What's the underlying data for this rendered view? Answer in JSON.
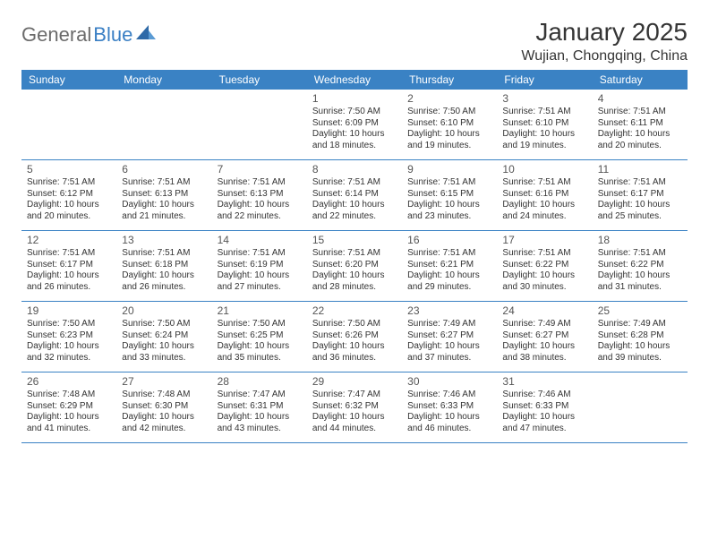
{
  "logo": {
    "general": "General",
    "blue": "Blue"
  },
  "title": "January 2025",
  "location": "Wujian, Chongqing, China",
  "day_headers": [
    "Sunday",
    "Monday",
    "Tuesday",
    "Wednesday",
    "Thursday",
    "Friday",
    "Saturday"
  ],
  "colors": {
    "header_bg": "#3a82c4",
    "header_fg": "#ffffff",
    "row_border": "#3a82c4",
    "title_fg": "#353535",
    "logo_gray": "#6b6b6b",
    "logo_blue": "#3a7fc4",
    "text": "#333333"
  },
  "weeks": [
    [
      {
        "n": "",
        "sr": "",
        "ss": "",
        "dl": ""
      },
      {
        "n": "",
        "sr": "",
        "ss": "",
        "dl": ""
      },
      {
        "n": "",
        "sr": "",
        "ss": "",
        "dl": ""
      },
      {
        "n": "1",
        "sr": "Sunrise: 7:50 AM",
        "ss": "Sunset: 6:09 PM",
        "dl": "Daylight: 10 hours and 18 minutes."
      },
      {
        "n": "2",
        "sr": "Sunrise: 7:50 AM",
        "ss": "Sunset: 6:10 PM",
        "dl": "Daylight: 10 hours and 19 minutes."
      },
      {
        "n": "3",
        "sr": "Sunrise: 7:51 AM",
        "ss": "Sunset: 6:10 PM",
        "dl": "Daylight: 10 hours and 19 minutes."
      },
      {
        "n": "4",
        "sr": "Sunrise: 7:51 AM",
        "ss": "Sunset: 6:11 PM",
        "dl": "Daylight: 10 hours and 20 minutes."
      }
    ],
    [
      {
        "n": "5",
        "sr": "Sunrise: 7:51 AM",
        "ss": "Sunset: 6:12 PM",
        "dl": "Daylight: 10 hours and 20 minutes."
      },
      {
        "n": "6",
        "sr": "Sunrise: 7:51 AM",
        "ss": "Sunset: 6:13 PM",
        "dl": "Daylight: 10 hours and 21 minutes."
      },
      {
        "n": "7",
        "sr": "Sunrise: 7:51 AM",
        "ss": "Sunset: 6:13 PM",
        "dl": "Daylight: 10 hours and 22 minutes."
      },
      {
        "n": "8",
        "sr": "Sunrise: 7:51 AM",
        "ss": "Sunset: 6:14 PM",
        "dl": "Daylight: 10 hours and 22 minutes."
      },
      {
        "n": "9",
        "sr": "Sunrise: 7:51 AM",
        "ss": "Sunset: 6:15 PM",
        "dl": "Daylight: 10 hours and 23 minutes."
      },
      {
        "n": "10",
        "sr": "Sunrise: 7:51 AM",
        "ss": "Sunset: 6:16 PM",
        "dl": "Daylight: 10 hours and 24 minutes."
      },
      {
        "n": "11",
        "sr": "Sunrise: 7:51 AM",
        "ss": "Sunset: 6:17 PM",
        "dl": "Daylight: 10 hours and 25 minutes."
      }
    ],
    [
      {
        "n": "12",
        "sr": "Sunrise: 7:51 AM",
        "ss": "Sunset: 6:17 PM",
        "dl": "Daylight: 10 hours and 26 minutes."
      },
      {
        "n": "13",
        "sr": "Sunrise: 7:51 AM",
        "ss": "Sunset: 6:18 PM",
        "dl": "Daylight: 10 hours and 26 minutes."
      },
      {
        "n": "14",
        "sr": "Sunrise: 7:51 AM",
        "ss": "Sunset: 6:19 PM",
        "dl": "Daylight: 10 hours and 27 minutes."
      },
      {
        "n": "15",
        "sr": "Sunrise: 7:51 AM",
        "ss": "Sunset: 6:20 PM",
        "dl": "Daylight: 10 hours and 28 minutes."
      },
      {
        "n": "16",
        "sr": "Sunrise: 7:51 AM",
        "ss": "Sunset: 6:21 PM",
        "dl": "Daylight: 10 hours and 29 minutes."
      },
      {
        "n": "17",
        "sr": "Sunrise: 7:51 AM",
        "ss": "Sunset: 6:22 PM",
        "dl": "Daylight: 10 hours and 30 minutes."
      },
      {
        "n": "18",
        "sr": "Sunrise: 7:51 AM",
        "ss": "Sunset: 6:22 PM",
        "dl": "Daylight: 10 hours and 31 minutes."
      }
    ],
    [
      {
        "n": "19",
        "sr": "Sunrise: 7:50 AM",
        "ss": "Sunset: 6:23 PM",
        "dl": "Daylight: 10 hours and 32 minutes."
      },
      {
        "n": "20",
        "sr": "Sunrise: 7:50 AM",
        "ss": "Sunset: 6:24 PM",
        "dl": "Daylight: 10 hours and 33 minutes."
      },
      {
        "n": "21",
        "sr": "Sunrise: 7:50 AM",
        "ss": "Sunset: 6:25 PM",
        "dl": "Daylight: 10 hours and 35 minutes."
      },
      {
        "n": "22",
        "sr": "Sunrise: 7:50 AM",
        "ss": "Sunset: 6:26 PM",
        "dl": "Daylight: 10 hours and 36 minutes."
      },
      {
        "n": "23",
        "sr": "Sunrise: 7:49 AM",
        "ss": "Sunset: 6:27 PM",
        "dl": "Daylight: 10 hours and 37 minutes."
      },
      {
        "n": "24",
        "sr": "Sunrise: 7:49 AM",
        "ss": "Sunset: 6:27 PM",
        "dl": "Daylight: 10 hours and 38 minutes."
      },
      {
        "n": "25",
        "sr": "Sunrise: 7:49 AM",
        "ss": "Sunset: 6:28 PM",
        "dl": "Daylight: 10 hours and 39 minutes."
      }
    ],
    [
      {
        "n": "26",
        "sr": "Sunrise: 7:48 AM",
        "ss": "Sunset: 6:29 PM",
        "dl": "Daylight: 10 hours and 41 minutes."
      },
      {
        "n": "27",
        "sr": "Sunrise: 7:48 AM",
        "ss": "Sunset: 6:30 PM",
        "dl": "Daylight: 10 hours and 42 minutes."
      },
      {
        "n": "28",
        "sr": "Sunrise: 7:47 AM",
        "ss": "Sunset: 6:31 PM",
        "dl": "Daylight: 10 hours and 43 minutes."
      },
      {
        "n": "29",
        "sr": "Sunrise: 7:47 AM",
        "ss": "Sunset: 6:32 PM",
        "dl": "Daylight: 10 hours and 44 minutes."
      },
      {
        "n": "30",
        "sr": "Sunrise: 7:46 AM",
        "ss": "Sunset: 6:33 PM",
        "dl": "Daylight: 10 hours and 46 minutes."
      },
      {
        "n": "31",
        "sr": "Sunrise: 7:46 AM",
        "ss": "Sunset: 6:33 PM",
        "dl": "Daylight: 10 hours and 47 minutes."
      },
      {
        "n": "",
        "sr": "",
        "ss": "",
        "dl": ""
      }
    ]
  ]
}
